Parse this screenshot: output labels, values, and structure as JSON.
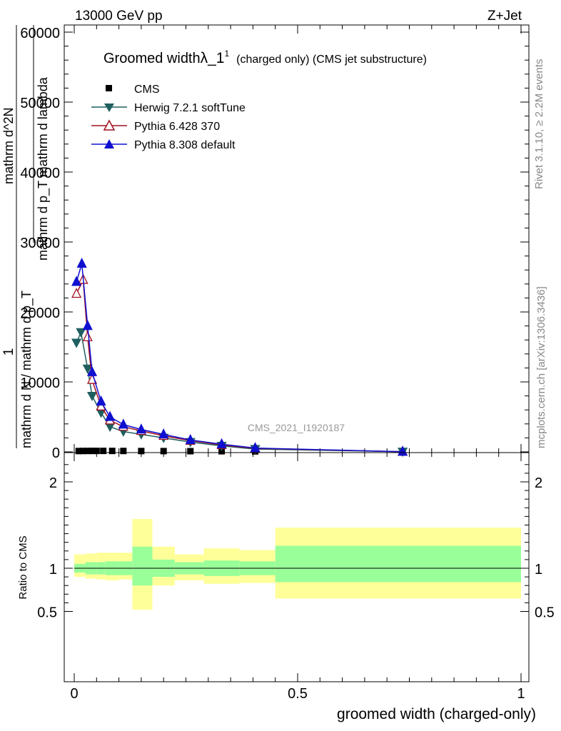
{
  "header": {
    "left": "13000 GeV pp",
    "right": "Z+Jet"
  },
  "side_text": {
    "rivet": "Rivet 3.1.10, ≥ 2.2M events",
    "mcplots": "mcplots.cern.ch [arXiv:1306.3436]"
  },
  "chart_data": [
    {
      "type": "line",
      "title": "Groomed width",
      "title_lambda": "λ_1",
      "title_sup": "1",
      "title_suffix": "(charged only) (CMS jet substructure)",
      "ylabel_lines": [
        "1",
        "mathrm d N / mathrm d p_T",
        "mathrm d^2N",
        "mathrm d p_T mathrm d lambda"
      ],
      "watermark": "CMS_2021_I1920187",
      "xlim": [
        0,
        1
      ],
      "ylim": [
        0,
        30000
      ],
      "yticks": [
        0,
        10000,
        20000,
        30000
      ],
      "ytick_labels": [
        "0",
        "10000",
        "20000",
        "30000"
      ],
      "ytick_labels_clipped": [
        "40000",
        "50000",
        "60000"
      ],
      "legend_position": "top-left",
      "series": [
        {
          "name": "CMS",
          "color": "#000000",
          "marker": "square",
          "x": [
            0.01,
            0.02,
            0.03,
            0.04,
            0.05,
            0.065,
            0.085,
            0.11,
            0.15,
            0.2,
            0.26,
            0.33,
            0.405,
            0.735
          ],
          "y": [
            120,
            130,
            135,
            140,
            140,
            140,
            135,
            130,
            120,
            110,
            100,
            90,
            70,
            30
          ]
        },
        {
          "name": "Herwig 7.2.1 softTune",
          "color": "#1f5f5f",
          "marker": "triangle-down",
          "x": [
            0.005,
            0.015,
            0.03,
            0.04,
            0.06,
            0.08,
            0.11,
            0.15,
            0.2,
            0.26,
            0.33,
            0.405,
            0.735
          ],
          "y": [
            15600,
            17100,
            11900,
            8000,
            5600,
            3600,
            2900,
            2500,
            2000,
            1400,
            850,
            400,
            20
          ]
        },
        {
          "name": "Pythia 6.428 370",
          "color": "#a01020",
          "marker": "triangle-open",
          "x": [
            0.005,
            0.02,
            0.03,
            0.04,
            0.06,
            0.08,
            0.11,
            0.15,
            0.2,
            0.26,
            0.33,
            0.405,
            0.735
          ],
          "y": [
            22600,
            24600,
            16400,
            10300,
            6500,
            4500,
            3600,
            3000,
            2300,
            1600,
            1000,
            500,
            20
          ]
        },
        {
          "name": "Pythia 8.308 default",
          "color": "#1010d0",
          "marker": "triangle-up",
          "x": [
            0.005,
            0.017,
            0.03,
            0.04,
            0.06,
            0.08,
            0.11,
            0.15,
            0.2,
            0.26,
            0.33,
            0.405,
            0.735
          ],
          "y": [
            24300,
            26900,
            18000,
            11400,
            7200,
            5000,
            3900,
            3200,
            2500,
            1700,
            1100,
            550,
            30
          ]
        }
      ]
    },
    {
      "type": "area",
      "ylabel": "Ratio to CMS",
      "xlabel": "groomed width (charged-only)",
      "xlim": [
        0,
        1
      ],
      "ylim": [
        0.4,
        2.3
      ],
      "yticks": [
        0.5,
        1,
        2
      ],
      "ytick_labels": [
        "0.5",
        "1",
        "2"
      ],
      "xticks": [
        0,
        0.5,
        1
      ],
      "xtick_labels": [
        "0",
        "0.5",
        "1"
      ],
      "reference_line": 1,
      "colors": {
        "stat": "#99ff99",
        "total": "#ffff99"
      },
      "bands": [
        {
          "x0": 0.0,
          "x1": 0.025,
          "stat": [
            0.95,
            1.05
          ],
          "total": [
            0.9,
            1.16
          ]
        },
        {
          "x0": 0.025,
          "x1": 0.05,
          "stat": [
            0.93,
            1.07
          ],
          "total": [
            0.88,
            1.17
          ]
        },
        {
          "x0": 0.05,
          "x1": 0.07,
          "stat": [
            0.93,
            1.07
          ],
          "total": [
            0.87,
            1.18
          ]
        },
        {
          "x0": 0.07,
          "x1": 0.1,
          "stat": [
            0.92,
            1.08
          ],
          "total": [
            0.86,
            1.18
          ]
        },
        {
          "x0": 0.1,
          "x1": 0.13,
          "stat": [
            0.92,
            1.08
          ],
          "total": [
            0.87,
            1.18
          ]
        },
        {
          "x0": 0.13,
          "x1": 0.175,
          "stat": [
            0.8,
            1.25
          ],
          "total": [
            0.52,
            1.57
          ]
        },
        {
          "x0": 0.175,
          "x1": 0.225,
          "stat": [
            0.9,
            1.1
          ],
          "total": [
            0.8,
            1.25
          ]
        },
        {
          "x0": 0.225,
          "x1": 0.29,
          "stat": [
            0.93,
            1.07
          ],
          "total": [
            0.86,
            1.16
          ]
        },
        {
          "x0": 0.29,
          "x1": 0.37,
          "stat": [
            0.91,
            1.09
          ],
          "total": [
            0.82,
            1.23
          ]
        },
        {
          "x0": 0.37,
          "x1": 0.45,
          "stat": [
            0.92,
            1.08
          ],
          "total": [
            0.83,
            1.21
          ]
        },
        {
          "x0": 0.45,
          "x1": 1.0,
          "stat": [
            0.84,
            1.26
          ],
          "total": [
            0.65,
            1.47
          ]
        }
      ]
    }
  ]
}
